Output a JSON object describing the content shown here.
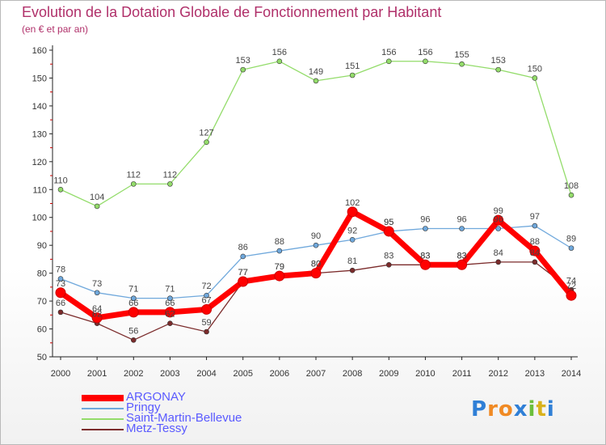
{
  "chart_data": {
    "type": "line",
    "title": "Evolution de la Dotation Globale de Fonctionnement par Habitant",
    "subtitle": "(en € et par an)",
    "xlabel": "",
    "ylabel": "",
    "categories": [
      "2000",
      "2001",
      "2002",
      "2003",
      "2004",
      "2005",
      "2006",
      "2007",
      "2008",
      "2009",
      "2010",
      "2011",
      "2012",
      "2013",
      "2014"
    ],
    "ylim": [
      50,
      160
    ],
    "yticks": [
      50,
      60,
      70,
      80,
      90,
      100,
      110,
      120,
      130,
      140,
      150,
      160
    ],
    "ytick_labels": [
      "50",
      "60",
      "70",
      "80",
      "90",
      "100",
      "110",
      "120",
      "130",
      "140",
      "150",
      "160"
    ],
    "grid": false,
    "legend_position": "bottom-left",
    "series": [
      {
        "name": "ARGONAY",
        "color": "#ff0000",
        "values": [
          73,
          64,
          66,
          66,
          67,
          77,
          79,
          80,
          102,
          95,
          83,
          83,
          99,
          88,
          72
        ],
        "labels": [
          "73",
          "64",
          "66",
          "66",
          "67",
          "77",
          "79",
          "80",
          "102",
          "95",
          "83",
          "83",
          "99",
          "88",
          "72"
        ]
      },
      {
        "name": "Pringy",
        "color": "#6fa8dc",
        "values": [
          78,
          73,
          71,
          71,
          72,
          86,
          88,
          90,
          92,
          95,
          96,
          96,
          96,
          97,
          89
        ],
        "labels": [
          "78",
          "73",
          "71",
          "71",
          "72",
          "86",
          "88",
          "90",
          "92",
          "95",
          "96",
          "96",
          "96",
          "97",
          "89"
        ]
      },
      {
        "name": "Saint-Martin-Bellevue",
        "color": "#93dc6a",
        "values": [
          110,
          104,
          112,
          112,
          127,
          153,
          156,
          149,
          151,
          156,
          156,
          155,
          153,
          150,
          108
        ],
        "labels": [
          "110",
          "104",
          "112",
          "112",
          "127",
          "153",
          "156",
          "149",
          "151",
          "156",
          "156",
          "155",
          "153",
          "150",
          "108"
        ]
      },
      {
        "name": "Metz-Tessy",
        "color": "#7b2b2b",
        "values": [
          66,
          62,
          56,
          62,
          59,
          77,
          79,
          80,
          81,
          83,
          83,
          83,
          84,
          84,
          74
        ],
        "labels": [
          "66",
          "62",
          "56",
          "62",
          "59",
          "77",
          "79",
          "80",
          "81",
          "83",
          "83",
          "83",
          "84",
          "84",
          "74"
        ]
      }
    ]
  },
  "brand": {
    "text": "Proxiti",
    "letter_colors": [
      "#2f7fd6",
      "#f08a24",
      "#f08a24",
      "#2f7fd6",
      "#6cbf3c",
      "#d9b21c",
      "#2f7fd6"
    ]
  }
}
